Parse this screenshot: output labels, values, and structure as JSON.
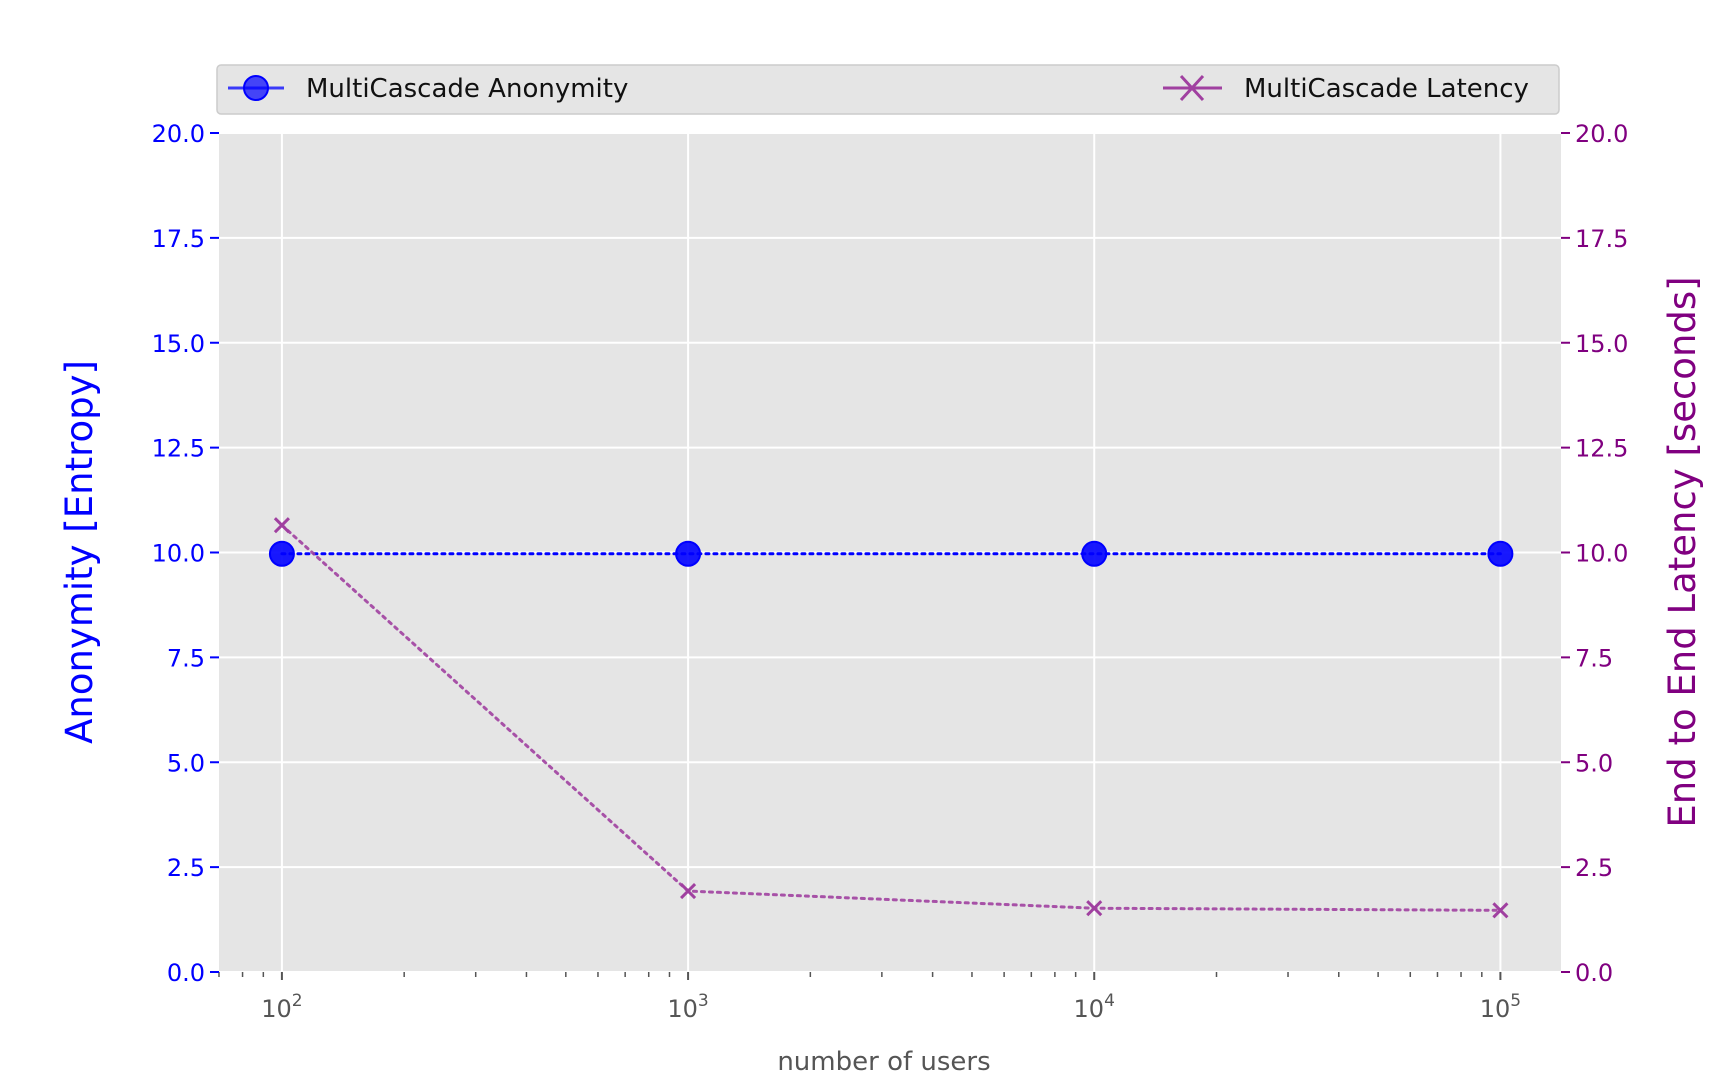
{
  "chart_data": {
    "type": "line",
    "xlabel": "number of users",
    "x_scale": "log",
    "x": [
      100,
      1000,
      10000,
      100000
    ],
    "xlim": [
      70,
      141000
    ],
    "x_tick_labels": [
      {
        "base": "10",
        "exp": "2"
      },
      {
        "base": "10",
        "exp": "3"
      },
      {
        "base": "10",
        "exp": "4"
      },
      {
        "base": "10",
        "exp": "5"
      }
    ],
    "y_left": {
      "label": "Anonymity [Entropy]",
      "lim": [
        0,
        20
      ],
      "ticks": [
        "0.0",
        "2.5",
        "5.0",
        "7.5",
        "10.0",
        "12.5",
        "15.0",
        "17.5",
        "20.0"
      ],
      "color": "#0000ff"
    },
    "y_right": {
      "label": "End to End Latency [seconds]",
      "lim": [
        0,
        20
      ],
      "ticks": [
        "0.0",
        "2.5",
        "5.0",
        "7.5",
        "10.0",
        "12.5",
        "15.0",
        "17.5",
        "20.0"
      ],
      "color": "#800080"
    },
    "series": [
      {
        "name": "MultiCascade Anonymity",
        "axis": "left",
        "values": [
          9.97,
          9.97,
          9.97,
          9.97
        ],
        "color": "#0000ff",
        "marker": "circle",
        "linestyle": "dotted"
      },
      {
        "name": "MultiCascade Latency",
        "axis": "right",
        "values": [
          10.65,
          1.93,
          1.52,
          1.47
        ],
        "color": "#a040a0",
        "marker": "x",
        "linestyle": "dotted"
      }
    ],
    "legend_position": "top, above plot",
    "grid": true,
    "style": {
      "plot_bg": "#e5e5e5",
      "grid_color": "#ffffff",
      "tick_color": "#555555"
    }
  }
}
